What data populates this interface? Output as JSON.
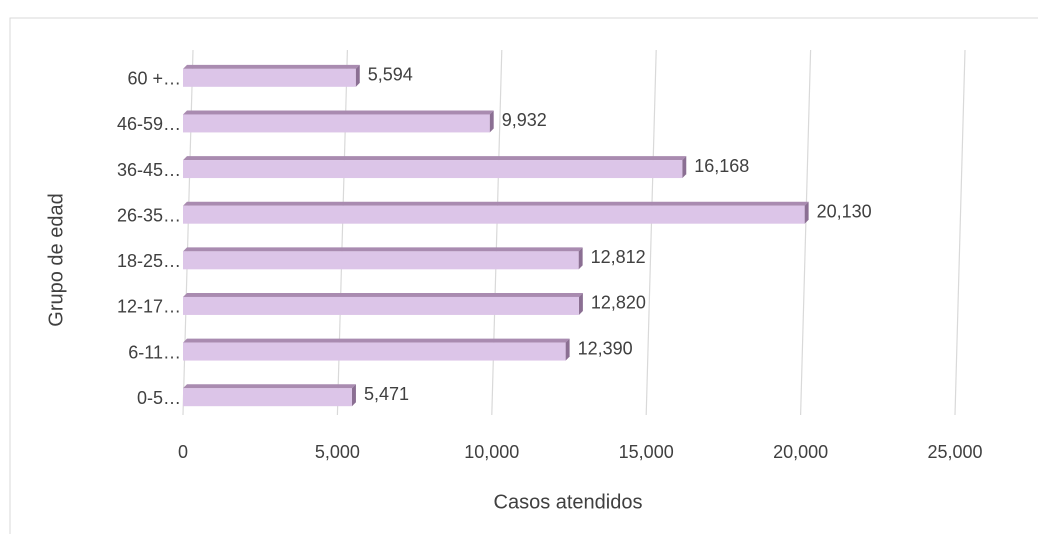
{
  "chart_data": {
    "type": "bar",
    "orientation": "horizontal",
    "x_label": "Casos atendidos",
    "y_label": "Grupo de edad",
    "categories": [
      "0-5…",
      "6-11…",
      "12-17…",
      "18-25…",
      "26-35…",
      "36-45…",
      "46-59…",
      "60 +…"
    ],
    "values": [
      5471,
      12390,
      12820,
      12812,
      20130,
      16168,
      9932,
      5594
    ],
    "value_labels": [
      "5,471",
      "12,390",
      "12,820",
      "12,812",
      "20,130",
      "16,168",
      "9,932",
      "5,594"
    ],
    "color": "#dcc5e8",
    "xlim": [
      0,
      25000
    ],
    "xticks": [
      0,
      {
        "value": 5000,
        "label": "5,000"
      },
      {
        "value": 10000,
        "label": "10,000"
      },
      {
        "value": 15000,
        "label": "15,000"
      },
      {
        "value": 20000,
        "label": "20,000"
      },
      {
        "value": 25000,
        "label": "25,000"
      }
    ],
    "grid": true
  }
}
